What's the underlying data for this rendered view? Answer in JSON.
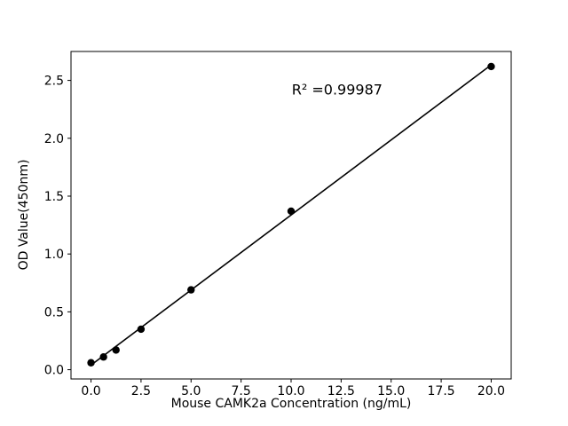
{
  "chart_data": {
    "type": "scatter",
    "x": [
      0,
      0.625,
      1.25,
      2.5,
      5,
      10,
      20
    ],
    "y": [
      0.06,
      0.11,
      0.17,
      0.35,
      0.69,
      1.37,
      2.62
    ],
    "fit": {
      "slope": 0.1297,
      "intercept": 0.04,
      "x_start": 0,
      "x_end": 20
    },
    "annotation": {
      "text": "R² =0.99987",
      "x": 12.3,
      "y": 2.42
    },
    "title": "",
    "xlabel": "Mouse CAMK2a Concentration (ng/mL)",
    "ylabel": "OD Value(450nm)",
    "xlim": [
      -1,
      21
    ],
    "ylim": [
      -0.08,
      2.75
    ],
    "xticks": [
      0.0,
      2.5,
      5.0,
      7.5,
      10.0,
      12.5,
      15.0,
      17.5,
      20.0
    ],
    "xtick_labels": [
      "0.0",
      "2.5",
      "5.0",
      "7.5",
      "10.0",
      "12.5",
      "15.0",
      "17.5",
      "20.0"
    ],
    "yticks": [
      0.0,
      0.5,
      1.0,
      1.5,
      2.0,
      2.5
    ],
    "ytick_labels": [
      "0.0",
      "0.5",
      "1.0",
      "1.5",
      "2.0",
      "2.5"
    ],
    "grid": false,
    "legend": null,
    "colors": {
      "point": "#000000",
      "line": "#000000",
      "axes": "#000000",
      "tick_label": "#000000",
      "background": "#ffffff"
    }
  }
}
